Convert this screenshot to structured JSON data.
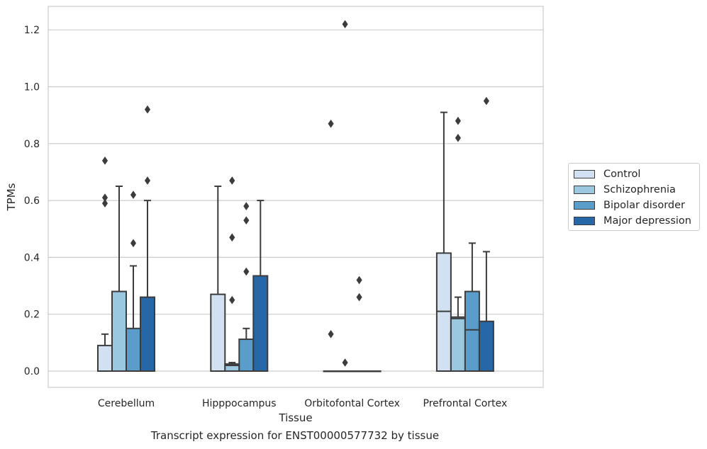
{
  "chart_data": {
    "type": "box",
    "title": "",
    "caption": "Transcript expression for ENST00000577732 by tissue",
    "xlabel": "Tissue",
    "ylabel": "TPMs",
    "ylim": [
      -0.06,
      1.28
    ],
    "yticks": [
      "0.0",
      "0.2",
      "0.4",
      "0.6",
      "0.8",
      "1.0",
      "1.2"
    ],
    "grid": "horizontal",
    "legend_position": "right",
    "categories": [
      "Cerebellum",
      "Hipppocampus",
      "Orbitofontal Cortex",
      "Prefrontal Cortex"
    ],
    "series": [
      {
        "name": "Control",
        "color": "#d1e1f1",
        "boxes": [
          {
            "q1": 0.0,
            "median": 0.0,
            "q3": 0.09,
            "whisker_low": 0.0,
            "whisker_high": 0.13,
            "outliers": [
              0.74,
              0.61,
              0.59
            ]
          },
          {
            "q1": 0.0,
            "median": 0.0,
            "q3": 0.27,
            "whisker_low": 0.0,
            "whisker_high": 0.65,
            "outliers": []
          },
          {
            "q1": 0.0,
            "median": 0.0,
            "q3": 0.0,
            "whisker_low": 0.0,
            "whisker_high": 0.0,
            "outliers": [
              0.87,
              0.13
            ]
          },
          {
            "q1": 0.0,
            "median": 0.21,
            "q3": 0.415,
            "whisker_low": 0.0,
            "whisker_high": 0.91,
            "outliers": []
          }
        ]
      },
      {
        "name": "Schizophrenia",
        "color": "#9ac8e0",
        "boxes": [
          {
            "q1": 0.0,
            "median": 0.0,
            "q3": 0.28,
            "whisker_low": 0.0,
            "whisker_high": 0.65,
            "outliers": []
          },
          {
            "q1": 0.0,
            "median": 0.02,
            "q3": 0.025,
            "whisker_low": 0.0,
            "whisker_high": 0.03,
            "outliers": [
              0.67,
              0.47,
              0.25
            ]
          },
          {
            "q1": 0.0,
            "median": 0.0,
            "q3": 0.0,
            "whisker_low": 0.0,
            "whisker_high": 0.0,
            "outliers": [
              1.22,
              0.03
            ]
          },
          {
            "q1": 0.0,
            "median": 0.185,
            "q3": 0.19,
            "whisker_low": 0.0,
            "whisker_high": 0.26,
            "outliers": [
              0.88,
              0.82
            ]
          }
        ]
      },
      {
        "name": "Bipolar disorder",
        "color": "#5a9dca",
        "boxes": [
          {
            "q1": 0.0,
            "median": 0.0,
            "q3": 0.15,
            "whisker_low": 0.0,
            "whisker_high": 0.37,
            "outliers": [
              0.62,
              0.45
            ]
          },
          {
            "q1": 0.0,
            "median": 0.0,
            "q3": 0.112,
            "whisker_low": 0.0,
            "whisker_high": 0.15,
            "outliers": [
              0.58,
              0.53,
              0.35
            ]
          },
          {
            "q1": 0.0,
            "median": 0.0,
            "q3": 0.0,
            "whisker_low": 0.0,
            "whisker_high": 0.0,
            "outliers": [
              0.32,
              0.26
            ]
          },
          {
            "q1": 0.0,
            "median": 0.145,
            "q3": 0.28,
            "whisker_low": 0.0,
            "whisker_high": 0.45,
            "outliers": []
          }
        ]
      },
      {
        "name": "Major depression",
        "color": "#2667a8",
        "boxes": [
          {
            "q1": 0.0,
            "median": 0.0,
            "q3": 0.26,
            "whisker_low": 0.0,
            "whisker_high": 0.6,
            "outliers": [
              0.92,
              0.67
            ]
          },
          {
            "q1": 0.0,
            "median": 0.0,
            "q3": 0.335,
            "whisker_low": 0.0,
            "whisker_high": 0.6,
            "outliers": []
          },
          {
            "q1": 0.0,
            "median": 0.0,
            "q3": 0.0,
            "whisker_low": 0.0,
            "whisker_high": 0.0,
            "outliers": []
          },
          {
            "q1": 0.0,
            "median": 0.0,
            "q3": 0.175,
            "whisker_low": 0.0,
            "whisker_high": 0.42,
            "outliers": [
              0.95
            ]
          }
        ]
      }
    ]
  }
}
